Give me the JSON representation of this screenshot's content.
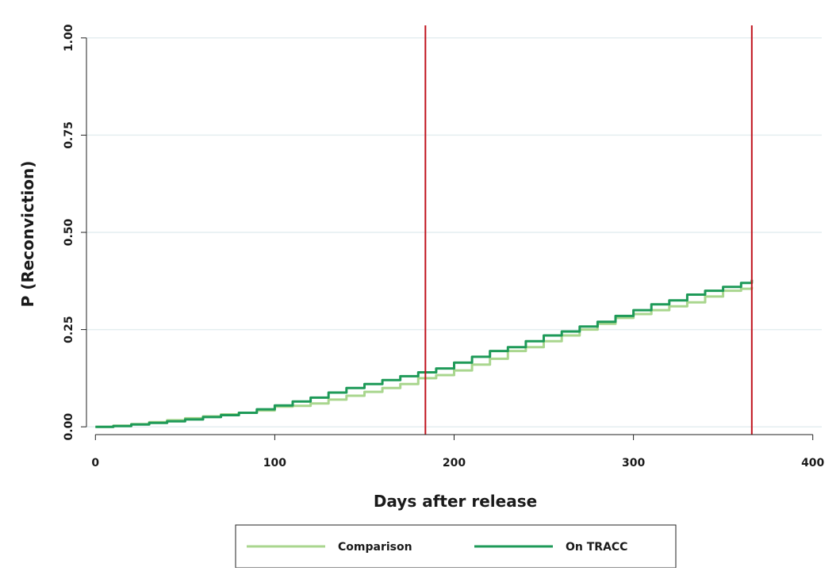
{
  "chart_data": {
    "type": "line",
    "title": "",
    "xlabel": "Days after release",
    "ylabel": "P (Reconviction)",
    "xlim": [
      -5,
      405
    ],
    "ylim": [
      -0.02,
      1.02
    ],
    "xticks": [
      0,
      100,
      200,
      300,
      400
    ],
    "xtick_labels": [
      "0",
      "100",
      "200",
      "300",
      "400"
    ],
    "yticks": [
      0,
      0.25,
      0.5,
      0.75,
      1.0
    ],
    "ytick_labels": [
      "0.00",
      "0.25",
      "0.50",
      "0.75",
      "1.00"
    ],
    "grid": "horizontal",
    "legend_position": "bottom",
    "vlines": [
      {
        "x": 184,
        "color": "#c0141e"
      },
      {
        "x": 366,
        "color": "#c0141e"
      }
    ],
    "series": [
      {
        "name": "Comparison",
        "color": "#a9d68e",
        "x": [
          0,
          10,
          20,
          30,
          40,
          50,
          60,
          70,
          80,
          90,
          100,
          110,
          120,
          130,
          140,
          150,
          160,
          170,
          180,
          190,
          200,
          210,
          220,
          230,
          240,
          250,
          260,
          270,
          280,
          290,
          300,
          310,
          320,
          330,
          340,
          350,
          360,
          366
        ],
        "values": [
          0,
          0.003,
          0.007,
          0.012,
          0.017,
          0.022,
          0.027,
          0.032,
          0.036,
          0.042,
          0.052,
          0.054,
          0.06,
          0.07,
          0.08,
          0.09,
          0.1,
          0.11,
          0.125,
          0.133,
          0.145,
          0.16,
          0.175,
          0.195,
          0.205,
          0.22,
          0.235,
          0.25,
          0.265,
          0.28,
          0.29,
          0.3,
          0.31,
          0.32,
          0.335,
          0.35,
          0.355,
          0.36
        ]
      },
      {
        "name": "On TRACC",
        "color": "#1e9a58",
        "x": [
          0,
          10,
          20,
          30,
          40,
          50,
          60,
          70,
          80,
          90,
          100,
          110,
          120,
          130,
          140,
          150,
          160,
          170,
          180,
          190,
          200,
          210,
          220,
          230,
          240,
          250,
          260,
          270,
          280,
          290,
          300,
          310,
          320,
          330,
          340,
          350,
          360,
          366
        ],
        "values": [
          0,
          0.002,
          0.006,
          0.01,
          0.014,
          0.019,
          0.025,
          0.03,
          0.036,
          0.045,
          0.055,
          0.065,
          0.075,
          0.088,
          0.1,
          0.11,
          0.12,
          0.13,
          0.14,
          0.15,
          0.165,
          0.18,
          0.195,
          0.205,
          0.22,
          0.235,
          0.245,
          0.258,
          0.27,
          0.285,
          0.3,
          0.315,
          0.325,
          0.34,
          0.35,
          0.36,
          0.37,
          0.378
        ]
      }
    ]
  }
}
